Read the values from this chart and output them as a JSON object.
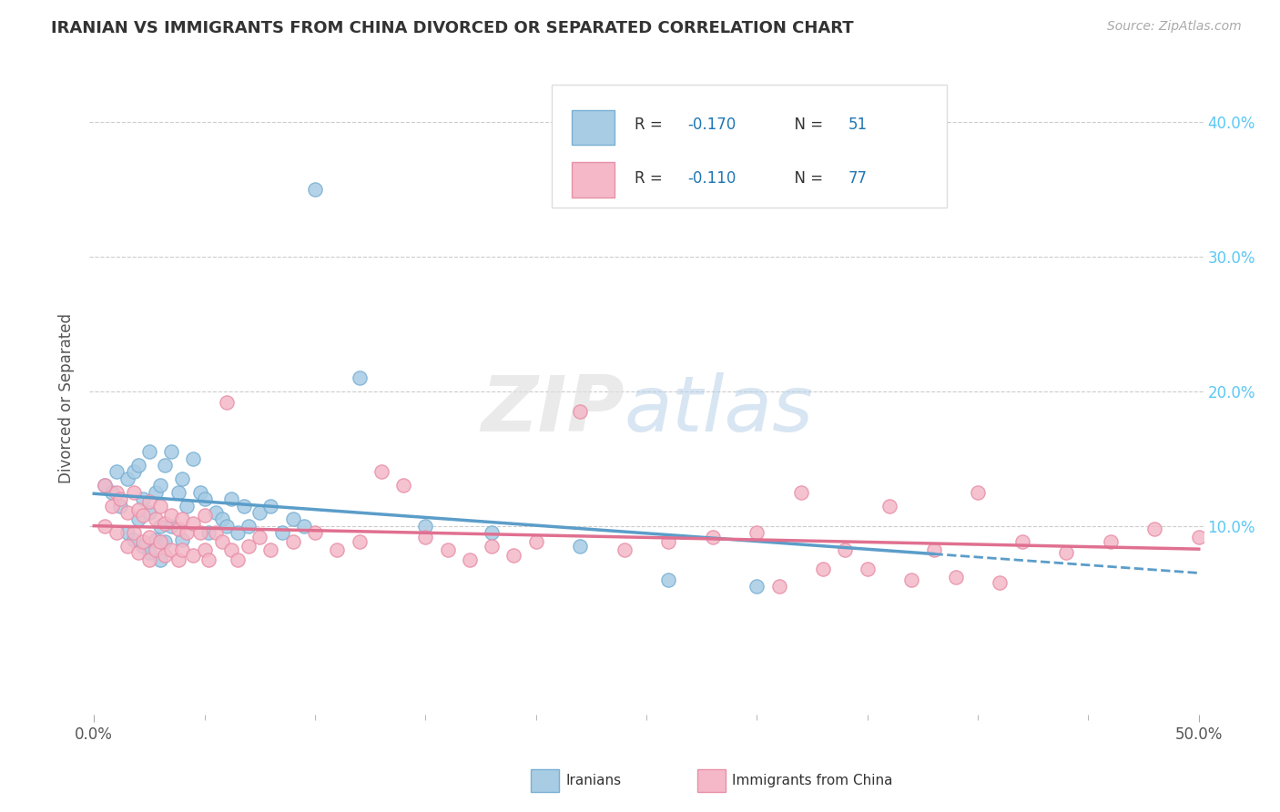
{
  "title": "IRANIAN VS IMMIGRANTS FROM CHINA DIVORCED OR SEPARATED CORRELATION CHART",
  "source": "Source: ZipAtlas.com",
  "ylabel": "Divorced or Separated",
  "ytick_vals": [
    0.1,
    0.2,
    0.3,
    0.4
  ],
  "ytick_labels": [
    "10.0%",
    "20.0%",
    "30.0%",
    "40.0%"
  ],
  "xlim": [
    -0.002,
    0.502
  ],
  "ylim": [
    -0.04,
    0.43
  ],
  "color_blue_fill": "#a8cce4",
  "color_blue_edge": "#7ab0d4",
  "color_blue_line": "#5b9dc9",
  "color_pink_fill": "#f4b8c8",
  "color_pink_edge": "#e890a8",
  "color_pink_line": "#e07090",
  "color_grid": "#cccccc",
  "color_title": "#333333",
  "color_source": "#aaaaaa",
  "color_tick_right": "#5bc8f5",
  "label_blue": "Iranians",
  "label_pink": "Immigrants from China",
  "blue_x": [
    0.005,
    0.008,
    0.01,
    0.012,
    0.015,
    0.015,
    0.018,
    0.018,
    0.02,
    0.02,
    0.022,
    0.022,
    0.025,
    0.025,
    0.025,
    0.028,
    0.028,
    0.03,
    0.03,
    0.03,
    0.032,
    0.032,
    0.035,
    0.035,
    0.038,
    0.04,
    0.04,
    0.042,
    0.045,
    0.048,
    0.05,
    0.052,
    0.055,
    0.058,
    0.06,
    0.062,
    0.065,
    0.068,
    0.07,
    0.075,
    0.08,
    0.085,
    0.09,
    0.095,
    0.1,
    0.12,
    0.15,
    0.18,
    0.22,
    0.26,
    0.3
  ],
  "blue_y": [
    0.13,
    0.125,
    0.14,
    0.115,
    0.135,
    0.095,
    0.14,
    0.09,
    0.145,
    0.105,
    0.12,
    0.085,
    0.155,
    0.11,
    0.08,
    0.125,
    0.09,
    0.13,
    0.1,
    0.075,
    0.145,
    0.088,
    0.155,
    0.1,
    0.125,
    0.135,
    0.09,
    0.115,
    0.15,
    0.125,
    0.12,
    0.095,
    0.11,
    0.105,
    0.1,
    0.12,
    0.095,
    0.115,
    0.1,
    0.11,
    0.115,
    0.095,
    0.105,
    0.1,
    0.35,
    0.21,
    0.1,
    0.095,
    0.085,
    0.06,
    0.055
  ],
  "pink_x": [
    0.005,
    0.005,
    0.008,
    0.01,
    0.01,
    0.012,
    0.015,
    0.015,
    0.018,
    0.018,
    0.02,
    0.02,
    0.022,
    0.022,
    0.025,
    0.025,
    0.025,
    0.028,
    0.028,
    0.03,
    0.03,
    0.032,
    0.032,
    0.035,
    0.035,
    0.038,
    0.038,
    0.04,
    0.04,
    0.042,
    0.045,
    0.045,
    0.048,
    0.05,
    0.05,
    0.052,
    0.055,
    0.058,
    0.06,
    0.062,
    0.065,
    0.07,
    0.075,
    0.08,
    0.09,
    0.1,
    0.11,
    0.12,
    0.13,
    0.14,
    0.15,
    0.16,
    0.17,
    0.18,
    0.19,
    0.2,
    0.22,
    0.24,
    0.26,
    0.28,
    0.3,
    0.32,
    0.34,
    0.36,
    0.38,
    0.4,
    0.42,
    0.44,
    0.46,
    0.48,
    0.5,
    0.31,
    0.33,
    0.35,
    0.37,
    0.39,
    0.41
  ],
  "pink_y": [
    0.13,
    0.1,
    0.115,
    0.125,
    0.095,
    0.12,
    0.11,
    0.085,
    0.125,
    0.095,
    0.112,
    0.08,
    0.108,
    0.088,
    0.118,
    0.092,
    0.075,
    0.105,
    0.082,
    0.115,
    0.088,
    0.102,
    0.078,
    0.108,
    0.082,
    0.098,
    0.075,
    0.105,
    0.082,
    0.095,
    0.102,
    0.078,
    0.095,
    0.108,
    0.082,
    0.075,
    0.095,
    0.088,
    0.192,
    0.082,
    0.075,
    0.085,
    0.092,
    0.082,
    0.088,
    0.095,
    0.082,
    0.088,
    0.14,
    0.13,
    0.092,
    0.082,
    0.075,
    0.085,
    0.078,
    0.088,
    0.185,
    0.082,
    0.088,
    0.092,
    0.095,
    0.125,
    0.082,
    0.115,
    0.082,
    0.125,
    0.088,
    0.08,
    0.088,
    0.098,
    0.092,
    0.055,
    0.068,
    0.068,
    0.06,
    0.062,
    0.058
  ]
}
